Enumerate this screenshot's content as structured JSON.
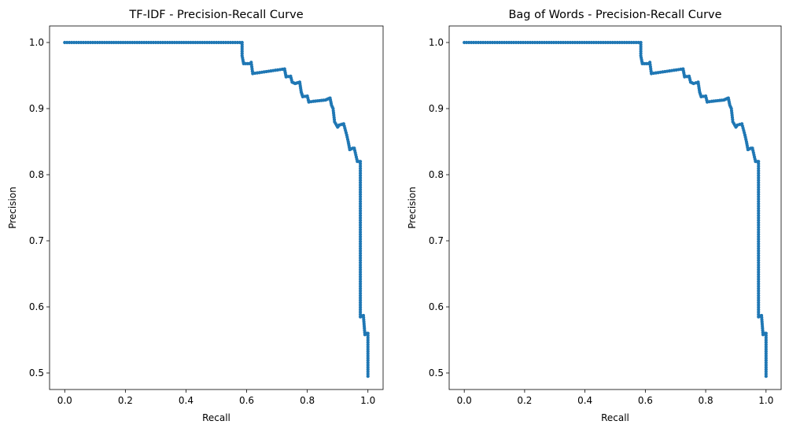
{
  "chart_data": [
    {
      "type": "line",
      "title": "TF-IDF - Precision-Recall Curve",
      "xlabel": "Recall",
      "ylabel": "Precision",
      "xlim": [
        -0.05,
        1.05
      ],
      "ylim": [
        0.475,
        1.025
      ],
      "xticks": [
        "0.0",
        "0.2",
        "0.4",
        "0.6",
        "0.8",
        "1.0"
      ],
      "yticks": [
        "0.5",
        "0.6",
        "0.7",
        "0.8",
        "0.9",
        "1.0"
      ],
      "grid": false,
      "color": "#1f77b4",
      "marker": "dot",
      "series": [
        {
          "x": [
            0.0,
            0.585,
            0.585,
            0.59,
            0.61,
            0.615,
            0.62,
            0.65,
            0.68,
            0.71,
            0.725,
            0.73,
            0.745,
            0.75,
            0.76,
            0.775,
            0.78,
            0.785,
            0.8,
            0.805,
            0.82,
            0.86,
            0.875,
            0.88,
            0.885,
            0.89,
            0.9,
            0.905,
            0.92,
            0.93,
            0.935,
            0.94,
            0.95,
            0.955,
            0.96,
            0.965,
            0.97,
            0.975,
            0.975,
            0.98,
            0.985,
            0.99,
            0.995,
            0.995,
            1.0,
            1.0
          ],
          "y": [
            1.0,
            1.0,
            0.98,
            0.968,
            0.968,
            0.97,
            0.953,
            0.955,
            0.957,
            0.959,
            0.96,
            0.948,
            0.949,
            0.94,
            0.938,
            0.94,
            0.925,
            0.918,
            0.919,
            0.91,
            0.911,
            0.913,
            0.916,
            0.905,
            0.9,
            0.88,
            0.872,
            0.875,
            0.877,
            0.86,
            0.85,
            0.838,
            0.84,
            0.84,
            0.83,
            0.82,
            0.82,
            0.82,
            0.585,
            0.586,
            0.587,
            0.558,
            0.56,
            0.56,
            0.56,
            0.495
          ]
        }
      ]
    },
    {
      "type": "line",
      "title": "Bag of Words - Precision-Recall Curve",
      "xlabel": "Recall",
      "ylabel": "Precision",
      "xlim": [
        -0.05,
        1.05
      ],
      "ylim": [
        0.475,
        1.025
      ],
      "xticks": [
        "0.0",
        "0.2",
        "0.4",
        "0.6",
        "0.8",
        "1.0"
      ],
      "yticks": [
        "0.5",
        "0.6",
        "0.7",
        "0.8",
        "0.9",
        "1.0"
      ],
      "grid": false,
      "color": "#1f77b4",
      "marker": "dot",
      "series": [
        {
          "x": [
            0.0,
            0.585,
            0.585,
            0.59,
            0.61,
            0.615,
            0.62,
            0.65,
            0.68,
            0.71,
            0.725,
            0.73,
            0.745,
            0.75,
            0.76,
            0.775,
            0.78,
            0.785,
            0.8,
            0.805,
            0.82,
            0.86,
            0.875,
            0.88,
            0.885,
            0.89,
            0.9,
            0.905,
            0.92,
            0.93,
            0.935,
            0.94,
            0.95,
            0.955,
            0.96,
            0.965,
            0.97,
            0.975,
            0.975,
            0.98,
            0.985,
            0.99,
            0.995,
            0.995,
            1.0,
            1.0
          ],
          "y": [
            1.0,
            1.0,
            0.98,
            0.968,
            0.968,
            0.97,
            0.953,
            0.955,
            0.957,
            0.959,
            0.96,
            0.948,
            0.949,
            0.94,
            0.938,
            0.94,
            0.925,
            0.918,
            0.919,
            0.91,
            0.911,
            0.913,
            0.916,
            0.905,
            0.9,
            0.88,
            0.872,
            0.875,
            0.877,
            0.86,
            0.85,
            0.838,
            0.84,
            0.84,
            0.83,
            0.82,
            0.82,
            0.82,
            0.585,
            0.586,
            0.587,
            0.558,
            0.56,
            0.56,
            0.56,
            0.495
          ]
        }
      ]
    }
  ]
}
